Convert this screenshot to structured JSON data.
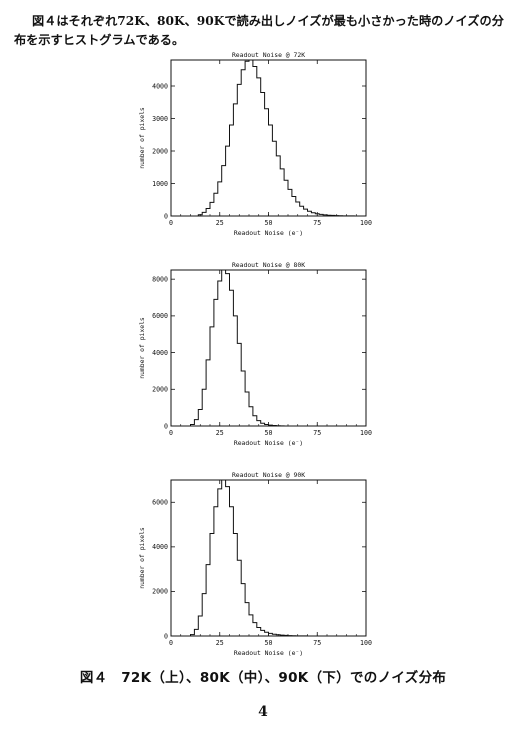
{
  "intro_text": "図４はそれぞれ72K、80K、90Kで読み出しノイズが最も小さかった時のノイズの分布を示すヒストグラムである。",
  "caption": "図４　72K（上）、80K（中）、90K（下）でのノイズ分布",
  "page_number": "4",
  "chart_data": [
    {
      "type": "histogram",
      "title": "Readout Noise @ 72K",
      "xlabel": "Readout Noise (e⁻)",
      "ylabel": "number of pixels",
      "xlim": [
        0,
        100
      ],
      "ylim": [
        0,
        4800
      ],
      "xticks": [
        0,
        25,
        50,
        75,
        100
      ],
      "yticks": [
        0,
        1000,
        2000,
        3000,
        4000
      ],
      "bin_width": 2,
      "x": [
        14,
        16,
        18,
        20,
        22,
        24,
        26,
        28,
        30,
        32,
        34,
        36,
        38,
        40,
        42,
        44,
        46,
        48,
        50,
        52,
        54,
        56,
        58,
        60,
        62,
        64,
        66,
        68,
        70,
        72,
        74,
        76,
        78,
        80,
        82,
        84,
        86,
        88,
        90,
        92,
        94
      ],
      "values": [
        40,
        110,
        230,
        420,
        700,
        1050,
        1550,
        2150,
        2800,
        3450,
        4050,
        4500,
        4760,
        4800,
        4600,
        4250,
        3800,
        3300,
        2800,
        2300,
        1850,
        1450,
        1100,
        820,
        600,
        430,
        300,
        210,
        145,
        100,
        70,
        50,
        35,
        25,
        18,
        12,
        8,
        5,
        3,
        2,
        1
      ]
    },
    {
      "type": "histogram",
      "title": "Readout Noise @ 80K",
      "xlabel": "Readout Noise (e⁻)",
      "ylabel": "number of pixels",
      "xlim": [
        0,
        100
      ],
      "ylim": [
        0,
        8500
      ],
      "xticks": [
        0,
        25,
        50,
        75,
        100
      ],
      "yticks": [
        0,
        2000,
        4000,
        6000,
        8000
      ],
      "bin_width": 2,
      "x": [
        10,
        12,
        14,
        16,
        18,
        20,
        22,
        24,
        26,
        28,
        30,
        32,
        34,
        36,
        38,
        40,
        42,
        44,
        46,
        48,
        50,
        52,
        54,
        56,
        58,
        60
      ],
      "values": [
        80,
        350,
        900,
        2000,
        3600,
        5400,
        6900,
        7900,
        8500,
        8300,
        7400,
        6000,
        4500,
        3000,
        1850,
        1050,
        560,
        290,
        150,
        80,
        45,
        25,
        12,
        6,
        3,
        1
      ]
    },
    {
      "type": "histogram",
      "title": "Readout Noise @ 90K",
      "xlabel": "Readout Noise (e⁻)",
      "ylabel": "number of pixels",
      "xlim": [
        0,
        100
      ],
      "ylim": [
        0,
        7000
      ],
      "xticks": [
        0,
        25,
        50,
        75,
        100
      ],
      "yticks": [
        0,
        2000,
        4000,
        6000
      ],
      "bin_width": 2,
      "x": [
        10,
        12,
        14,
        16,
        18,
        20,
        22,
        24,
        26,
        28,
        30,
        32,
        34,
        36,
        38,
        40,
        42,
        44,
        46,
        48,
        50,
        52,
        54,
        56,
        58,
        60,
        62,
        64,
        66,
        68,
        70
      ],
      "values": [
        60,
        300,
        900,
        1900,
        3200,
        4600,
        5800,
        6600,
        7000,
        6700,
        5800,
        4600,
        3400,
        2350,
        1500,
        950,
        600,
        380,
        250,
        170,
        115,
        80,
        55,
        38,
        26,
        18,
        12,
        8,
        5,
        3,
        1
      ]
    }
  ]
}
